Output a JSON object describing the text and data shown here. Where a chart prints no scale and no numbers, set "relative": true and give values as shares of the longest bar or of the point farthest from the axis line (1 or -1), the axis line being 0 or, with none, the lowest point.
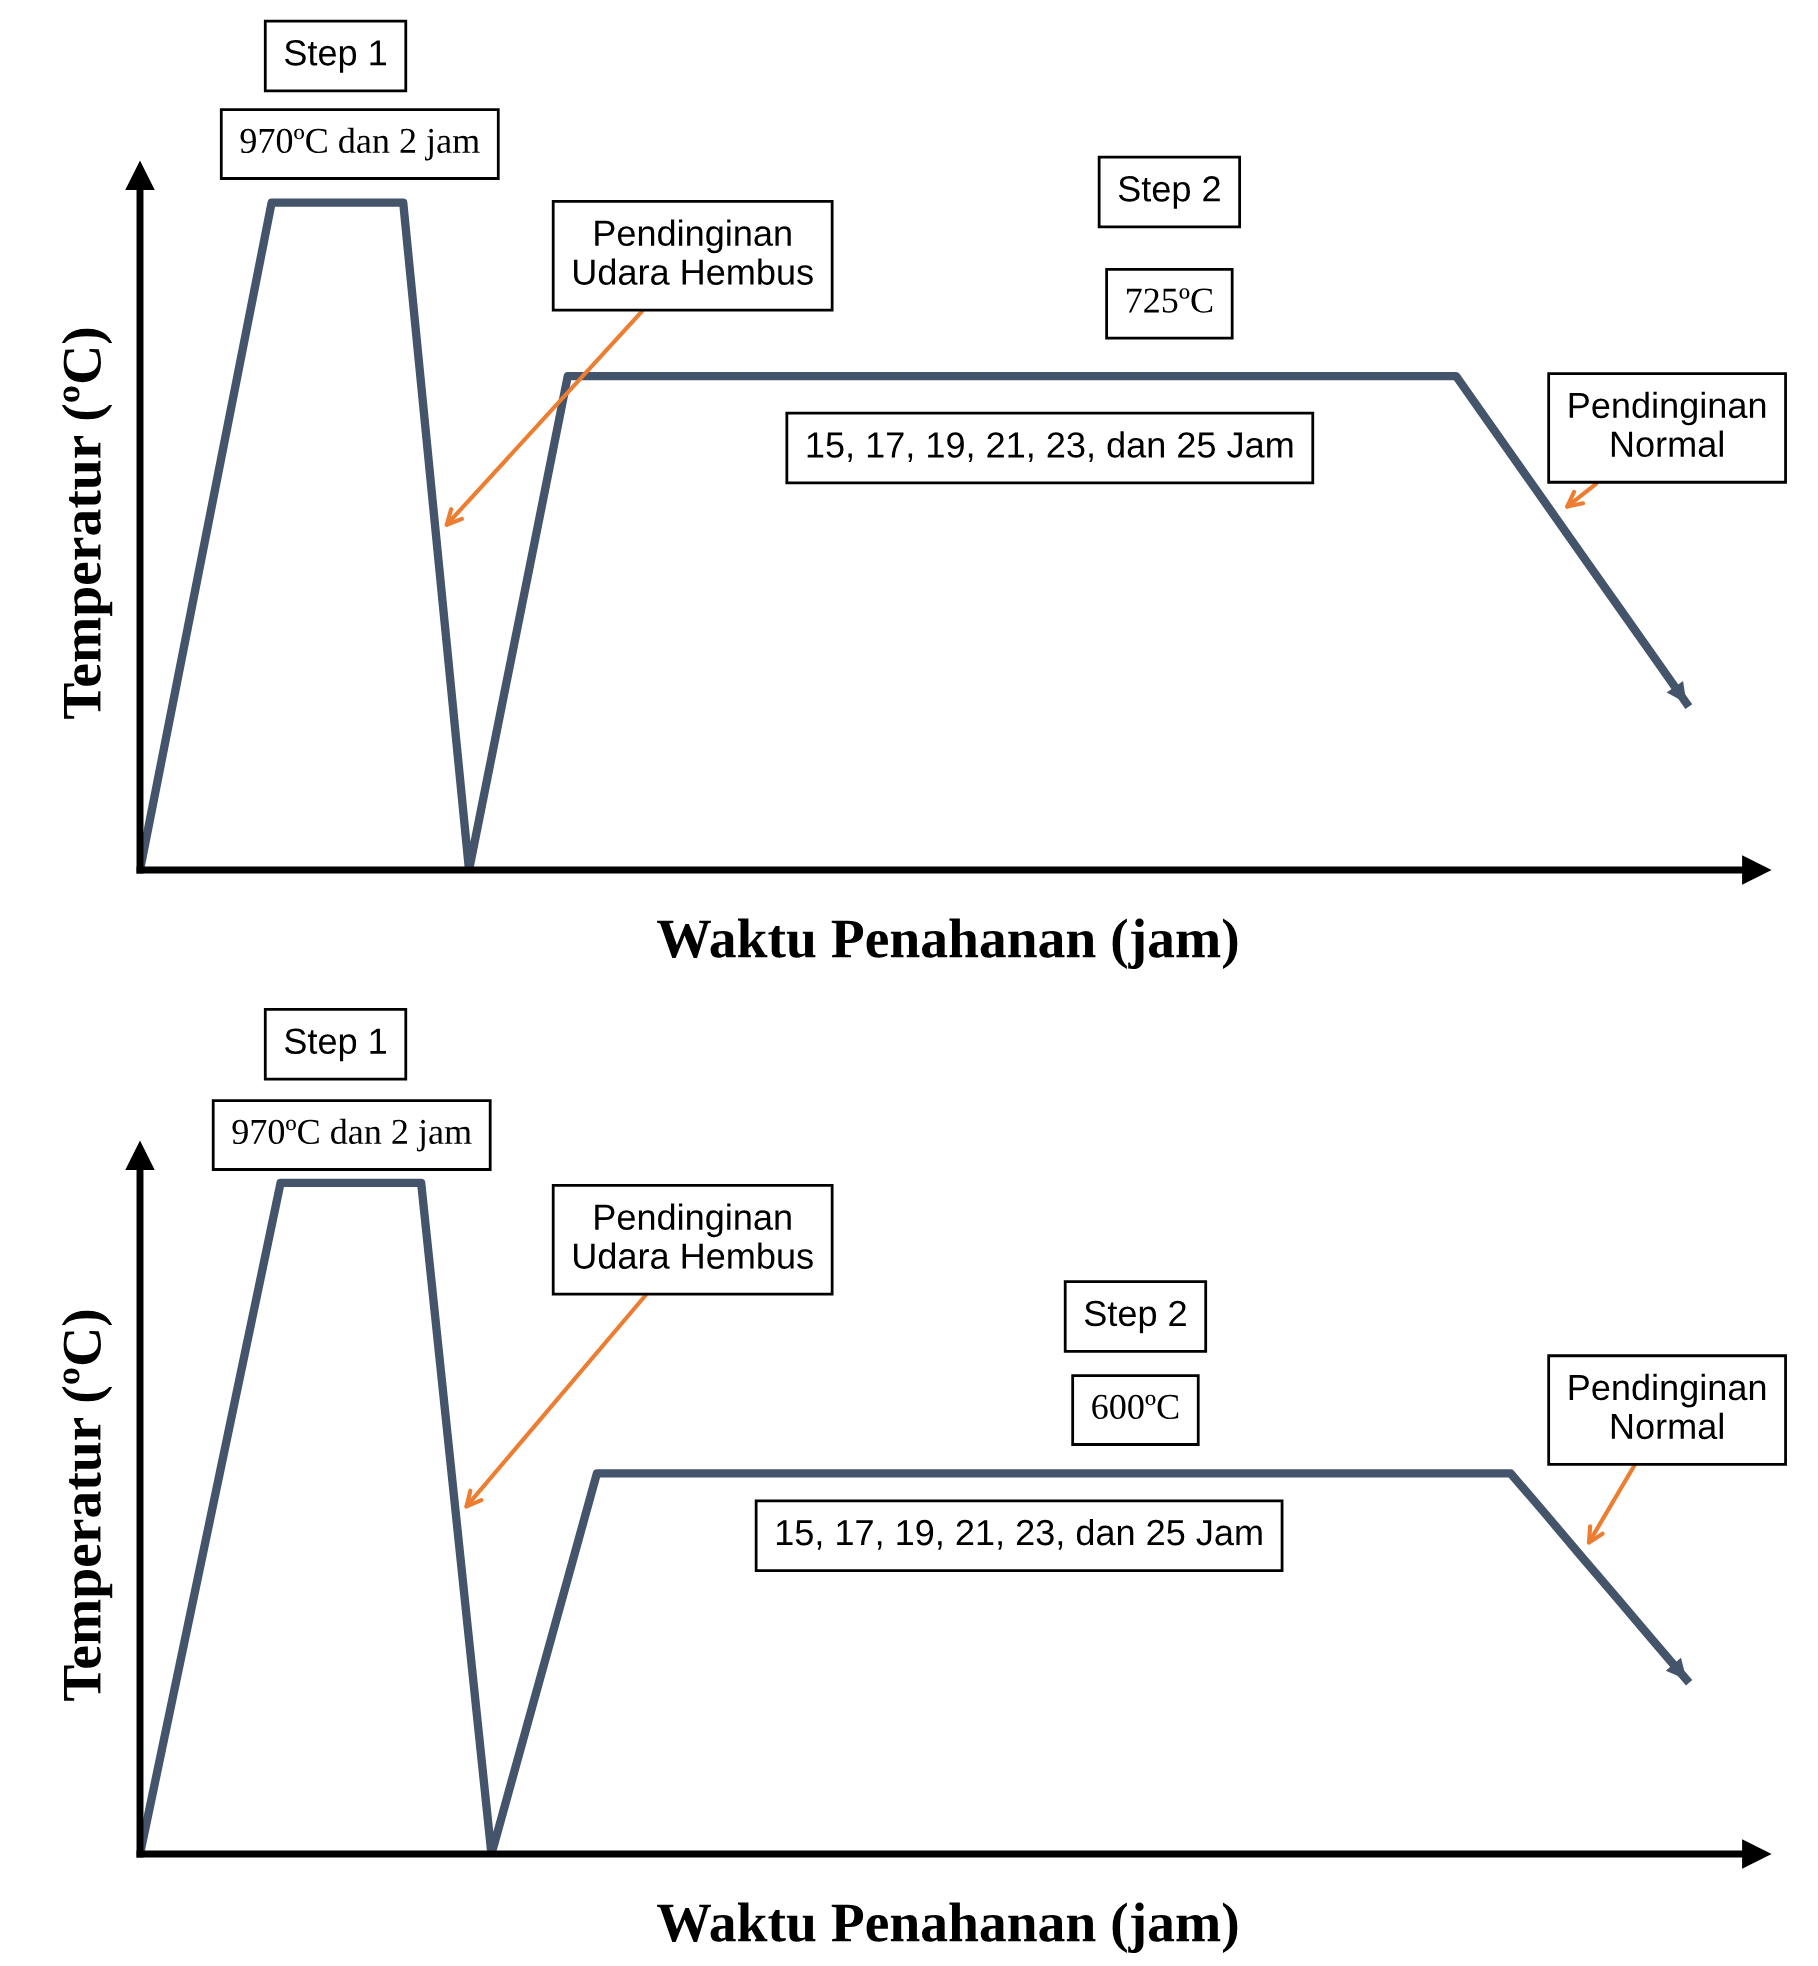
{
  "chart_data": [
    {
      "type": "line",
      "relative": true,
      "xlabel": "Waktu Penahanan (jam)",
      "ylabel": "Temperatur (ºC)",
      "marker": "none",
      "line_style": "solid",
      "categories": [
        null,
        null,
        null,
        null,
        null,
        null,
        null,
        null,
        null,
        null,
        null,
        null,
        null,
        null,
        null,
        null,
        null,
        null,
        null,
        null,
        null,
        null,
        null,
        null,
        null,
        null,
        null,
        null,
        null,
        null,
        null,
        null,
        null,
        null,
        null,
        null,
        null,
        null,
        null,
        null,
        null,
        null,
        null,
        null,
        null,
        null,
        null,
        null
      ],
      "series": [
        {
          "color": "#44546a",
          "values": [
            0,
            0.25,
            0.5,
            0.75,
            1,
            1,
            1,
            1,
            1,
            0.5,
            0,
            0.247,
            0.493,
            0.74,
            0.74,
            0.74,
            0.74,
            0.74,
            0.74,
            0.74,
            0.74,
            0.74,
            0.74,
            0.74,
            0.74,
            0.74,
            0.74,
            0.74,
            0.74,
            0.74,
            0.74,
            0.74,
            0.74,
            0.74,
            0.74,
            0.74,
            0.74,
            0.74,
            0.74,
            0.74,
            0.74,
            0.67,
            0.6,
            0.53,
            0.46,
            0.39,
            0.32,
            0.25
          ]
        }
      ],
      "annotations": [
        "Step 1",
        "970ºC dan 2 jam",
        "Pendinginan\nUdara Hembus",
        "Step 2",
        "725ºC",
        "15, 17, 19, 21, 23, dan 25 Jam",
        "Pendinginan\nNormal"
      ]
    },
    {
      "type": "line",
      "relative": true,
      "xlabel": "Waktu Penahanan (jam)",
      "ylabel": "Temperatur (ºC)",
      "marker": "none",
      "line_style": "solid",
      "categories": [
        null,
        null,
        null,
        null,
        null,
        null,
        null,
        null,
        null,
        null,
        null,
        null,
        null,
        null,
        null,
        null,
        null,
        null,
        null,
        null,
        null,
        null,
        null,
        null,
        null,
        null,
        null,
        null,
        null,
        null,
        null,
        null,
        null,
        null,
        null,
        null,
        null,
        null,
        null,
        null,
        null,
        null,
        null,
        null,
        null
      ],
      "series": [
        {
          "color": "#44546a",
          "values": [
            0,
            0.25,
            0.5,
            0.75,
            1,
            1,
            1,
            1,
            1,
            0.5,
            0,
            0.189,
            0.378,
            0.567,
            0.567,
            0.567,
            0.567,
            0.567,
            0.567,
            0.567,
            0.567,
            0.567,
            0.567,
            0.567,
            0.567,
            0.567,
            0.567,
            0.567,
            0.567,
            0.567,
            0.567,
            0.567,
            0.567,
            0.567,
            0.567,
            0.567,
            0.567,
            0.567,
            0.567,
            0.567,
            0.506,
            0.444,
            0.383,
            0.321,
            0.26
          ]
        }
      ],
      "annotations": [
        "Step 1",
        "970ºC dan 2 jam",
        "Pendinginan\nUdara Hembus",
        "Step 2",
        "600ºC",
        "15, 17, 19, 21, 23, dan 25 Jam",
        "Pendinginan\nNormal"
      ]
    }
  ]
}
